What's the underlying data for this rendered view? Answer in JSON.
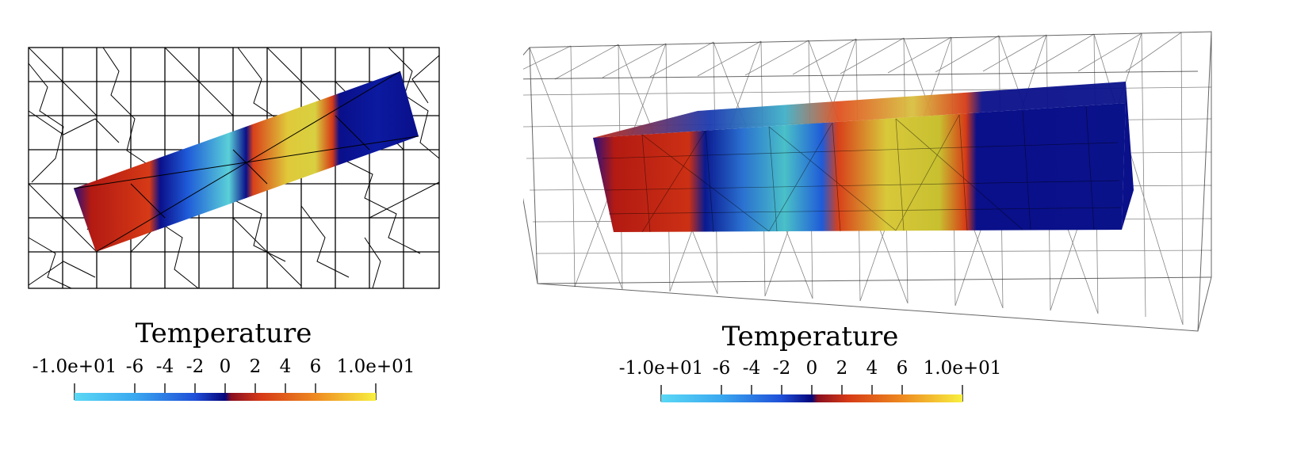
{
  "left_panel": {
    "colorbar": {
      "title": "Temperature",
      "tick_labels": [
        "-1.0e+01",
        "-6",
        "-4",
        "-2",
        "0",
        "2",
        "4",
        "6",
        "1.0e+01"
      ]
    }
  },
  "right_panel": {
    "colorbar": {
      "title": "Temperature",
      "tick_labels": [
        "-1.0e+01",
        "-6",
        "-4",
        "-2",
        "0",
        "2",
        "4",
        "6",
        "1.0e+01"
      ]
    }
  },
  "colors": {
    "cold_light": "#5ad8f5",
    "cold_mid": "#1f5bd8",
    "cold_dark": "#0a0f8a",
    "hot_dark": "#b31a12",
    "hot_mid": "#e04a1c",
    "hot_light": "#f0e040",
    "mesh": "#000000"
  }
}
